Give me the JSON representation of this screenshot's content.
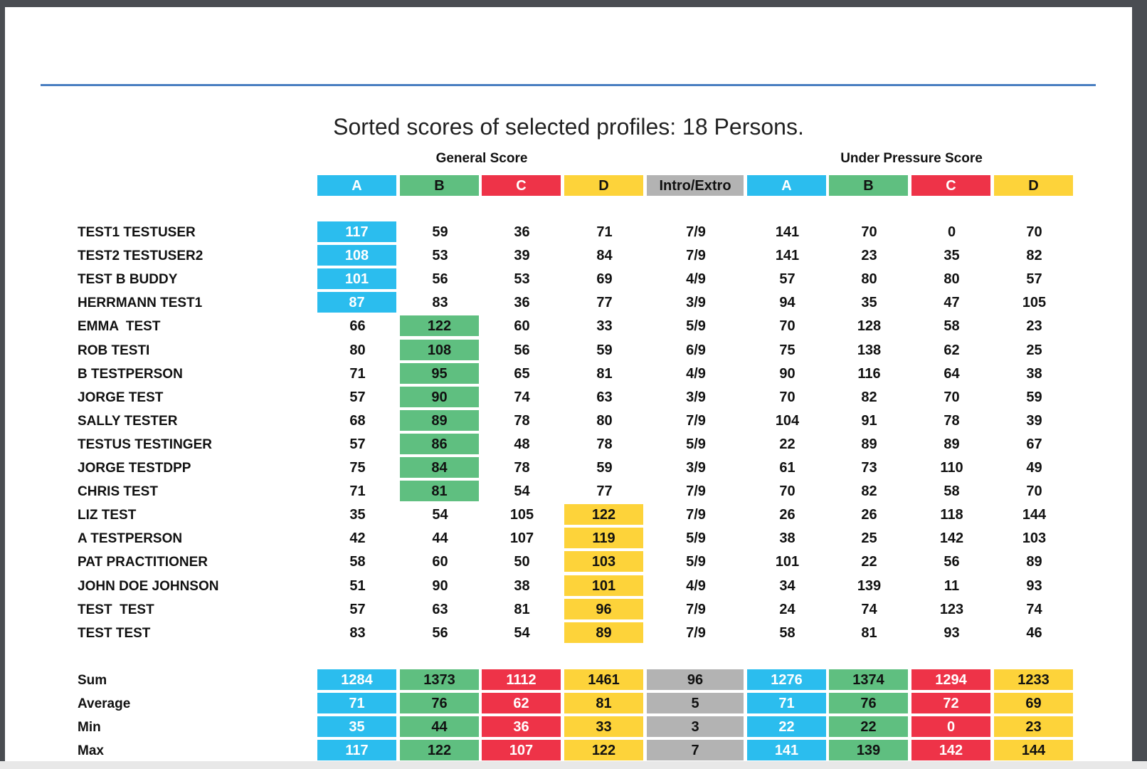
{
  "title": "Sorted scores of selected profiles: 18 Persons.",
  "groups": {
    "general": "General Score",
    "pressure": "Under Pressure Score"
  },
  "colors": {
    "A": "#2bbdee",
    "B": "#5fbf80",
    "C": "#ee3348",
    "D": "#fdd33a",
    "IE": "#b3b3b3"
  },
  "columns": [
    "A",
    "B",
    "C",
    "D",
    "Intro/Extro",
    "A",
    "B",
    "C",
    "D"
  ],
  "rows": [
    {
      "name": "TEST1 TESTUSER",
      "values": [
        "117",
        "59",
        "36",
        "71",
        "7/9",
        "141",
        "70",
        "0",
        "70"
      ],
      "highlight": 0
    },
    {
      "name": "TEST2 TESTUSER2",
      "values": [
        "108",
        "53",
        "39",
        "84",
        "7/9",
        "141",
        "23",
        "35",
        "82"
      ],
      "highlight": 0
    },
    {
      "name": "TEST B BUDDY",
      "values": [
        "101",
        "56",
        "53",
        "69",
        "4/9",
        "57",
        "80",
        "80",
        "57"
      ],
      "highlight": 0
    },
    {
      "name": "HERRMANN TEST1",
      "values": [
        "87",
        "83",
        "36",
        "77",
        "3/9",
        "94",
        "35",
        "47",
        "105"
      ],
      "highlight": 0
    },
    {
      "name": "EMMA  TEST",
      "values": [
        "66",
        "122",
        "60",
        "33",
        "5/9",
        "70",
        "128",
        "58",
        "23"
      ],
      "highlight": 1
    },
    {
      "name": "ROB TESTI",
      "values": [
        "80",
        "108",
        "56",
        "59",
        "6/9",
        "75",
        "138",
        "62",
        "25"
      ],
      "highlight": 1
    },
    {
      "name": "B TESTPERSON",
      "values": [
        "71",
        "95",
        "65",
        "81",
        "4/9",
        "90",
        "116",
        "64",
        "38"
      ],
      "highlight": 1
    },
    {
      "name": "JORGE TEST",
      "values": [
        "57",
        "90",
        "74",
        "63",
        "3/9",
        "70",
        "82",
        "70",
        "59"
      ],
      "highlight": 1
    },
    {
      "name": "SALLY TESTER",
      "values": [
        "68",
        "89",
        "78",
        "80",
        "7/9",
        "104",
        "91",
        "78",
        "39"
      ],
      "highlight": 1
    },
    {
      "name": "TESTUS TESTINGER",
      "values": [
        "57",
        "86",
        "48",
        "78",
        "5/9",
        "22",
        "89",
        "89",
        "67"
      ],
      "highlight": 1
    },
    {
      "name": "JORGE TESTDPP",
      "values": [
        "75",
        "84",
        "78",
        "59",
        "3/9",
        "61",
        "73",
        "110",
        "49"
      ],
      "highlight": 1
    },
    {
      "name": "CHRIS TEST",
      "values": [
        "71",
        "81",
        "54",
        "77",
        "7/9",
        "70",
        "82",
        "58",
        "70"
      ],
      "highlight": 1
    },
    {
      "name": "LIZ TEST",
      "values": [
        "35",
        "54",
        "105",
        "122",
        "7/9",
        "26",
        "26",
        "118",
        "144"
      ],
      "highlight": 3
    },
    {
      "name": "A TESTPERSON",
      "values": [
        "42",
        "44",
        "107",
        "119",
        "5/9",
        "38",
        "25",
        "142",
        "103"
      ],
      "highlight": 3
    },
    {
      "name": "PAT PRACTITIONER",
      "values": [
        "58",
        "60",
        "50",
        "103",
        "5/9",
        "101",
        "22",
        "56",
        "89"
      ],
      "highlight": 3
    },
    {
      "name": "JOHN DOE JOHNSON",
      "values": [
        "51",
        "90",
        "38",
        "101",
        "4/9",
        "34",
        "139",
        "11",
        "93"
      ],
      "highlight": 3
    },
    {
      "name": "TEST  TEST",
      "values": [
        "57",
        "63",
        "81",
        "96",
        "7/9",
        "24",
        "74",
        "123",
        "74"
      ],
      "highlight": 3
    },
    {
      "name": "TEST TEST",
      "values": [
        "83",
        "56",
        "54",
        "89",
        "7/9",
        "58",
        "81",
        "93",
        "46"
      ],
      "highlight": 3
    }
  ],
  "summary": [
    {
      "label": "Sum",
      "values": [
        "1284",
        "1373",
        "1112",
        "1461",
        "96",
        "1276",
        "1374",
        "1294",
        "1233"
      ]
    },
    {
      "label": "Average",
      "values": [
        "71",
        "76",
        "62",
        "81",
        "5",
        "71",
        "76",
        "72",
        "69"
      ]
    },
    {
      "label": "Min",
      "values": [
        "35",
        "44",
        "36",
        "33",
        "3",
        "22",
        "22",
        "0",
        "23"
      ]
    },
    {
      "label": "Max",
      "values": [
        "117",
        "122",
        "107",
        "122",
        "7",
        "141",
        "139",
        "142",
        "144"
      ]
    }
  ]
}
